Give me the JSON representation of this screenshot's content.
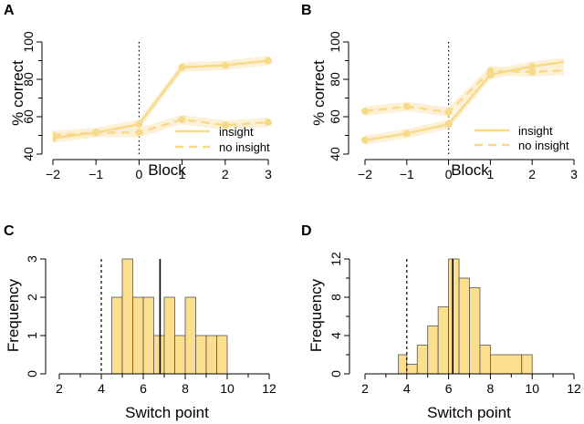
{
  "colors": {
    "accent": "#f7d98a",
    "band": "#fbeed0",
    "bar_fill": "#fbde8e",
    "bar_stroke": "#555555",
    "line": "#000000"
  },
  "chart_data": [
    {
      "panel": "A",
      "type": "line",
      "xlabel": "Block",
      "ylabel": "% correct",
      "x": [
        -2,
        -1,
        0,
        1,
        2,
        3
      ],
      "xlim": [
        -2,
        3
      ],
      "ylim": [
        40,
        100
      ],
      "yticks": [
        40,
        60,
        80,
        100
      ],
      "ytick_labels": [
        "40",
        "60",
        "80",
        "100"
      ],
      "minor_yticks": [
        50,
        70,
        90
      ],
      "xticks": [
        -2,
        -1,
        0,
        1,
        2,
        3
      ],
      "xtick_labels": [
        "−2",
        "−1",
        "0",
        "1",
        "2",
        "3"
      ],
      "vline": 0,
      "series": [
        {
          "name": "insight",
          "style": "solid",
          "values": [
            48.5,
            51.5,
            56,
            86.5,
            87.5,
            90
          ]
        },
        {
          "name": "no insight",
          "style": "dashed",
          "values": [
            50,
            51.5,
            51.5,
            58.5,
            55.5,
            57
          ]
        }
      ],
      "legend": [
        "insight",
        "no insight"
      ],
      "legend_position": "bottom-right"
    },
    {
      "panel": "B",
      "type": "line",
      "xlabel": "Block",
      "ylabel": "% correct",
      "x": [
        -2,
        -1,
        0,
        1,
        2,
        3
      ],
      "xlim": [
        -2,
        3
      ],
      "ylim": [
        40,
        100
      ],
      "yticks": [
        40,
        60,
        80,
        100
      ],
      "ytick_labels": [
        "40",
        "60",
        "80",
        "100"
      ],
      "minor_yticks": [
        50,
        70,
        90
      ],
      "xticks": [
        -2,
        -1,
        0,
        1,
        2,
        3
      ],
      "xtick_labels": [
        "−2",
        "−1",
        "0",
        "1",
        "2",
        "3"
      ],
      "vline": 0,
      "series": [
        {
          "name": "insight",
          "style": "solid",
          "values": [
            47.5,
            51,
            56,
            82.5,
            87,
            90
          ]
        },
        {
          "name": "no insight",
          "style": "dashed",
          "values": [
            63,
            65.5,
            62.5,
            84.5,
            84,
            85
          ]
        }
      ],
      "legend": [
        "insight",
        "no insight"
      ],
      "legend_position": "bottom-right"
    },
    {
      "panel": "C",
      "type": "bar",
      "xlabel": "Switch point",
      "ylabel": "Frequency",
      "xlim": [
        2,
        12
      ],
      "ylim": [
        0,
        3
      ],
      "xticks": [
        2,
        4,
        6,
        8,
        10,
        12
      ],
      "xtick_labels": [
        "2",
        "4",
        "6",
        "8",
        "10",
        "12"
      ],
      "minor_xticks": [
        3,
        5,
        7,
        9,
        11
      ],
      "yticks": [
        0,
        1,
        2,
        3
      ],
      "ytick_labels": [
        "0",
        "1",
        "2",
        "3"
      ],
      "bin_edges": [
        4.5,
        5.0,
        5.5,
        6.0,
        6.5,
        7.0,
        7.5,
        8.0,
        8.5,
        9.0,
        9.5,
        10.0
      ],
      "values": [
        2,
        3,
        2,
        2,
        1,
        2,
        1,
        2,
        1,
        1,
        1
      ],
      "vline_dashed": 4,
      "vline_solid": 6.8
    },
    {
      "panel": "D",
      "type": "bar",
      "xlabel": "Switch point",
      "ylabel": "Frequency",
      "xlim": [
        2,
        12
      ],
      "ylim": [
        0,
        12
      ],
      "xticks": [
        2,
        4,
        6,
        8,
        10,
        12
      ],
      "xtick_labels": [
        "2",
        "4",
        "6",
        "8",
        "10",
        "12"
      ],
      "minor_xticks": [
        3,
        5,
        7,
        9,
        11
      ],
      "yticks": [
        0,
        4,
        8,
        12
      ],
      "ytick_labels": [
        "0",
        "4",
        "8",
        "12"
      ],
      "minor_yticks": [
        2,
        6,
        10
      ],
      "bin_edges": [
        3.6,
        4.0,
        4.5,
        5.0,
        5.5,
        6.0,
        6.5,
        7.0,
        7.5,
        8.0,
        9.5,
        10.0
      ],
      "values": [
        2,
        1,
        3,
        5,
        7,
        12,
        10,
        9,
        3,
        2,
        2
      ],
      "vline_dashed": 4,
      "vline_solid": 6.2
    }
  ]
}
